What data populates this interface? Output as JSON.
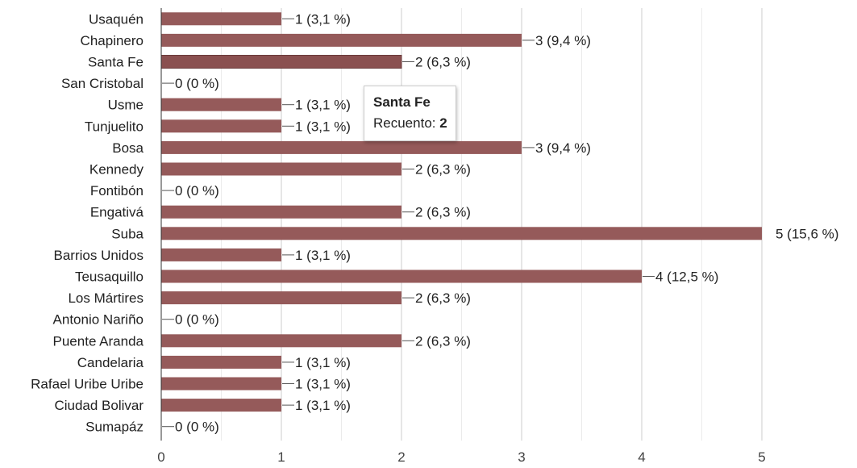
{
  "chart_data": {
    "type": "bar",
    "orientation": "horizontal",
    "categories": [
      "Usaquén",
      "Chapinero",
      "Santa Fe",
      "San Cristobal",
      "Usme",
      "Tunjuelito",
      "Bosa",
      "Kennedy",
      "Fontibón",
      "Engativá",
      "Suba",
      "Barrios Unidos",
      "Teusaquillo",
      "Los Mártires",
      "Antonio Nariño",
      "Puente Aranda",
      "Candelaria",
      "Rafael Uribe Uribe",
      "Ciudad Bolivar",
      "Sumapáz"
    ],
    "values": [
      1,
      3,
      2,
      0,
      1,
      1,
      3,
      2,
      0,
      2,
      5,
      1,
      4,
      2,
      0,
      2,
      1,
      1,
      1,
      0
    ],
    "value_labels": [
      "1 (3,1 %)",
      "3 (9,4 %)",
      "2 (6,3 %)",
      "0 (0 %)",
      "1 (3,1 %)",
      "1 (3,1 %)",
      "3 (9,4 %)",
      "2 (6,3 %)",
      "0 (0 %)",
      "2 (6,3 %)",
      "5 (15,6 %)",
      "1 (3,1 %)",
      "4 (12,5 %)",
      "2 (6,3 %)",
      "0 (0 %)",
      "2 (6,3 %)",
      "1 (3,1 %)",
      "1 (3,1 %)",
      "1 (3,1 %)",
      "0 (0 %)"
    ],
    "xlim": [
      0,
      5
    ],
    "x_ticks": [
      "0",
      "1",
      "2",
      "3",
      "4",
      "5"
    ],
    "grid": true,
    "bar_color": "#955a5a",
    "highlight_color": "#8a5050",
    "highlighted_category": "Santa Fe"
  },
  "tooltip": {
    "title": "Santa Fe",
    "label": "Recuento:",
    "value": "2"
  }
}
